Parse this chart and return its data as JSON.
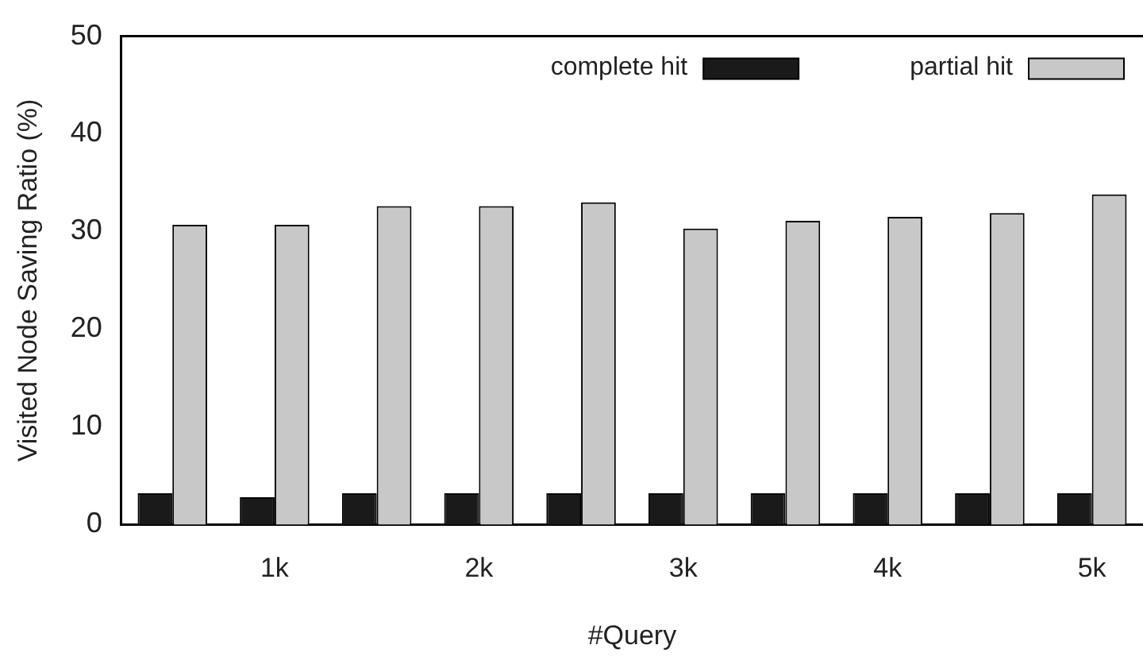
{
  "chart_data": {
    "type": "bar",
    "xlabel": "#Query",
    "ylabel": "Visited Node Saving Ratio (%)",
    "categories": [
      null,
      "1k",
      null,
      "2k",
      null,
      "3k",
      null,
      "4k",
      null,
      "5k"
    ],
    "series": [
      {
        "name": "complete hit",
        "color": "#1a1a1a",
        "values": [
          3.2,
          2.8,
          3.2,
          3.2,
          3.2,
          3.2,
          3.2,
          3.2,
          3.2,
          3.2
        ]
      },
      {
        "name": "partial hit",
        "color": "#c8c8c8",
        "values": [
          30.7,
          30.7,
          32.6,
          32.6,
          33.0,
          30.3,
          31.1,
          31.5,
          31.9,
          33.8
        ]
      }
    ],
    "ylim": [
      0,
      50
    ],
    "yticks": [
      0,
      10,
      20,
      30,
      40,
      50
    ],
    "grid": false,
    "legend": "top right"
  }
}
